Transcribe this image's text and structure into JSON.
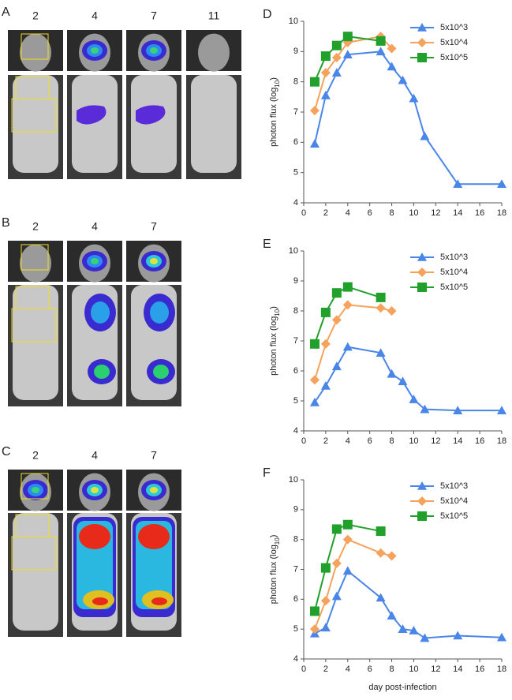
{
  "image_panels": [
    {
      "panel": "A",
      "days": [
        2,
        4,
        7,
        11
      ]
    },
    {
      "panel": "B",
      "days": [
        2,
        4,
        7
      ]
    },
    {
      "panel": "C",
      "days": [
        2,
        4,
        7
      ]
    }
  ],
  "chart_data": [
    {
      "type": "line",
      "panel": "D",
      "ylabel": "photon flux (log10)",
      "xlim": [
        0,
        18
      ],
      "xticks": [
        0,
        2,
        4,
        6,
        8,
        10,
        12,
        14,
        16,
        18
      ],
      "ylim": [
        4,
        10
      ],
      "yticks": [
        4,
        5,
        6,
        7,
        8,
        9,
        10
      ],
      "legend": "top-right",
      "series": [
        {
          "name": "5x10^3",
          "color": "#4a86e8",
          "marker": "triangle",
          "x": [
            1,
            2,
            3,
            4,
            7,
            8,
            9,
            10,
            11,
            14,
            18
          ],
          "values": [
            5.95,
            7.55,
            8.3,
            8.9,
            9.0,
            8.5,
            8.05,
            7.45,
            6.2,
            4.62,
            4.62
          ]
        },
        {
          "name": "5x10^4",
          "color": "#f5a35c",
          "marker": "diamond",
          "x": [
            1,
            2,
            3,
            4,
            7,
            8
          ],
          "values": [
            7.05,
            8.3,
            8.8,
            9.3,
            9.5,
            9.1
          ]
        },
        {
          "name": "5x10^5",
          "color": "#22a02c",
          "marker": "square",
          "x": [
            1,
            2,
            3,
            4,
            7
          ],
          "values": [
            8.0,
            8.85,
            9.2,
            9.5,
            9.35
          ]
        }
      ]
    },
    {
      "type": "line",
      "panel": "E",
      "ylabel": "photon flux (log10)",
      "xlim": [
        0,
        18
      ],
      "xticks": [
        0,
        2,
        4,
        6,
        8,
        10,
        12,
        14,
        16,
        18
      ],
      "ylim": [
        4,
        10
      ],
      "yticks": [
        4,
        5,
        6,
        7,
        8,
        9,
        10
      ],
      "legend": "top-right",
      "series": [
        {
          "name": "5x10^3",
          "color": "#4a86e8",
          "marker": "triangle",
          "x": [
            1,
            2,
            3,
            4,
            7,
            8,
            9,
            10,
            11,
            14,
            18
          ],
          "values": [
            4.95,
            5.5,
            6.15,
            6.8,
            6.6,
            5.9,
            5.65,
            5.05,
            4.72,
            4.68,
            4.68
          ]
        },
        {
          "name": "5x10^4",
          "color": "#f5a35c",
          "marker": "diamond",
          "x": [
            1,
            2,
            3,
            4,
            7,
            8
          ],
          "values": [
            5.7,
            6.9,
            7.7,
            8.2,
            8.1,
            8.0
          ]
        },
        {
          "name": "5x10^5",
          "color": "#22a02c",
          "marker": "square",
          "x": [
            1,
            2,
            3,
            4,
            7
          ],
          "values": [
            6.9,
            7.95,
            8.6,
            8.8,
            8.45
          ]
        }
      ]
    },
    {
      "type": "line",
      "panel": "F",
      "ylabel": "photon flux (log10)",
      "xlabel": "day post-infection",
      "xlim": [
        0,
        18
      ],
      "xticks": [
        0,
        2,
        4,
        6,
        8,
        10,
        12,
        14,
        16,
        18
      ],
      "ylim": [
        4,
        10
      ],
      "yticks": [
        4,
        5,
        6,
        7,
        8,
        9,
        10
      ],
      "legend": "top-right",
      "series": [
        {
          "name": "5x10^3",
          "color": "#4a86e8",
          "marker": "triangle",
          "x": [
            1,
            2,
            3,
            4,
            7,
            8,
            9,
            10,
            11,
            14,
            18
          ],
          "values": [
            4.85,
            5.05,
            6.1,
            6.95,
            6.05,
            5.45,
            5.0,
            4.95,
            4.7,
            4.78,
            4.72
          ]
        },
        {
          "name": "5x10^4",
          "color": "#f5a35c",
          "marker": "diamond",
          "x": [
            1,
            2,
            3,
            4,
            7,
            8
          ],
          "values": [
            5.0,
            5.95,
            7.2,
            8.0,
            7.55,
            7.45
          ]
        },
        {
          "name": "5x10^5",
          "color": "#22a02c",
          "marker": "square",
          "x": [
            1,
            2,
            3,
            4,
            7
          ],
          "values": [
            5.6,
            7.05,
            8.35,
            8.5,
            8.28
          ]
        }
      ]
    }
  ]
}
